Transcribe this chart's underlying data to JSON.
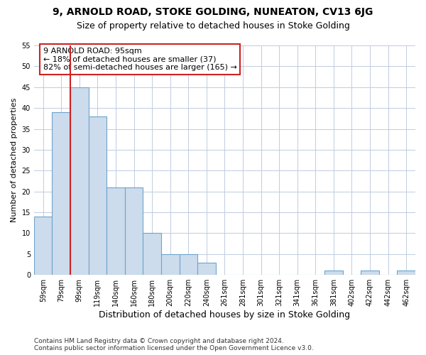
{
  "title": "9, ARNOLD ROAD, STOKE GOLDING, NUNEATON, CV13 6JG",
  "subtitle": "Size of property relative to detached houses in Stoke Golding",
  "xlabel": "Distribution of detached houses by size in Stoke Golding",
  "ylabel": "Number of detached properties",
  "categories": [
    "59sqm",
    "79sqm",
    "99sqm",
    "119sqm",
    "140sqm",
    "160sqm",
    "180sqm",
    "200sqm",
    "220sqm",
    "240sqm",
    "261sqm",
    "281sqm",
    "301sqm",
    "321sqm",
    "341sqm",
    "361sqm",
    "381sqm",
    "402sqm",
    "422sqm",
    "442sqm",
    "462sqm"
  ],
  "values": [
    14,
    39,
    45,
    38,
    21,
    21,
    10,
    5,
    5,
    3,
    0,
    0,
    0,
    0,
    0,
    0,
    1,
    0,
    1,
    0,
    1
  ],
  "bar_color": "#ccdcec",
  "bar_edge_color": "#6ea4cc",
  "bar_edge_width": 0.8,
  "vline_x": 1.5,
  "vline_color": "#cc2222",
  "annotation_text": "9 ARNOLD ROAD: 95sqm\n← 18% of detached houses are smaller (37)\n82% of semi-detached houses are larger (165) →",
  "annotation_box_facecolor": "#ffffff",
  "annotation_box_edgecolor": "#cc2222",
  "ylim": [
    0,
    55
  ],
  "yticks": [
    0,
    5,
    10,
    15,
    20,
    25,
    30,
    35,
    40,
    45,
    50,
    55
  ],
  "background_color": "#ffffff",
  "grid_color": "#c0cce0",
  "title_fontsize": 10,
  "subtitle_fontsize": 9,
  "ylabel_fontsize": 8,
  "xlabel_fontsize": 9,
  "tick_fontsize": 7,
  "annotation_fontsize": 8,
  "footer_text": "Contains HM Land Registry data © Crown copyright and database right 2024.\nContains public sector information licensed under the Open Government Licence v3.0.",
  "footer_fontsize": 6.5
}
